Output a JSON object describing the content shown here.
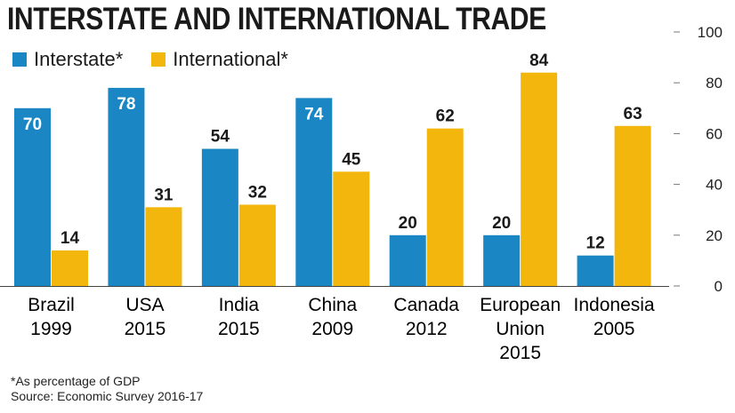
{
  "chart_data": {
    "type": "bar",
    "title": "INTERSTATE AND INTERNATIONAL TRADE",
    "categories": [
      [
        "Brazil",
        "1999"
      ],
      [
        "USA",
        "2015"
      ],
      [
        "India",
        "2015"
      ],
      [
        "China",
        "2009"
      ],
      [
        "Canada",
        "2012"
      ],
      [
        "European",
        "Union",
        "2015"
      ],
      [
        "Indonesia",
        "2005"
      ]
    ],
    "series": [
      {
        "name": "Interstate*",
        "color": "#1a87c4",
        "values": [
          70,
          78,
          54,
          74,
          20,
          20,
          12
        ]
      },
      {
        "name": "International*",
        "color": "#f2b60c",
        "values": [
          14,
          31,
          32,
          45,
          62,
          84,
          63
        ]
      }
    ],
    "ylim": [
      0,
      100
    ],
    "yticks": [
      0,
      20,
      40,
      60,
      80,
      100
    ],
    "grid": false,
    "legend": "top-left"
  },
  "footnote": {
    "note": "*As percentage of GDP",
    "source": "Source: Economic Survey 2016-17"
  }
}
